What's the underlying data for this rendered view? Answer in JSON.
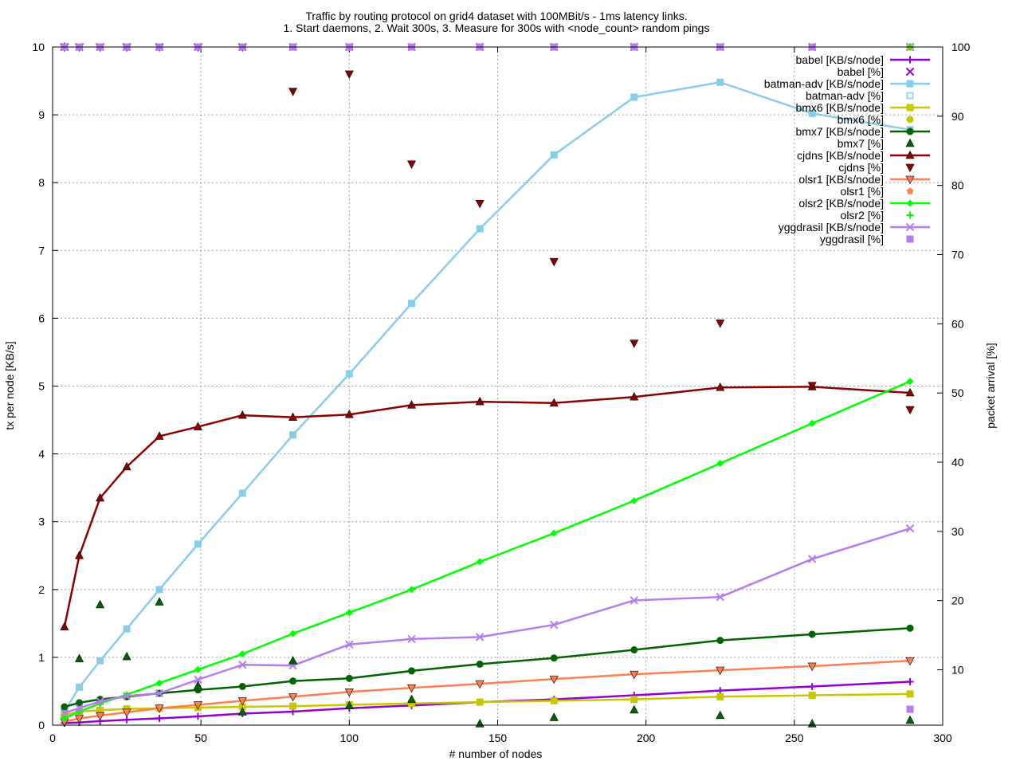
{
  "chart_data": {
    "type": "line",
    "title": "Traffic by routing protocol on grid4 dataset with 100MBit/s - 1ms latency links.",
    "subtitle": "1. Start daemons, 2. Wait 300s, 3. Measure for 300s with <node_count> random pings",
    "xlabel": "# number of nodes",
    "ylabel": "tx per node [KB/s]",
    "y2label": "packet arrival [%]",
    "xlim": [
      0,
      300
    ],
    "ylim": [
      0,
      10
    ],
    "y2lim": [
      2,
      100
    ],
    "x_ticks": [
      "0",
      "50",
      "100",
      "150",
      "200",
      "250",
      "300"
    ],
    "y_ticks": [
      "0",
      "1",
      "2",
      "3",
      "4",
      "5",
      "6",
      "7",
      "8",
      "9",
      "10"
    ],
    "y2_ticks": [
      "10",
      "20",
      "30",
      "40",
      "50",
      "60",
      "70",
      "80",
      "90",
      "100"
    ],
    "grid": true,
    "legend_position": "top-right",
    "x": [
      4,
      9,
      16,
      25,
      36,
      49,
      64,
      81,
      100,
      121,
      144,
      169,
      196,
      225,
      256,
      289
    ],
    "series": [
      {
        "name": "babel [KB/s/node]",
        "color": "#9400d3",
        "marker": "plus",
        "values": [
          0.03,
          0.04,
          0.06,
          0.08,
          0.1,
          0.13,
          0.17,
          0.2,
          0.25,
          0.29,
          0.34,
          0.38,
          0.44,
          0.51,
          0.57,
          0.64
        ]
      },
      {
        "name": "batman-adv [KB/s/node]",
        "color": "#87ceeb",
        "marker": "square",
        "values": [
          0.2,
          0.56,
          0.95,
          1.42,
          2.0,
          2.67,
          3.42,
          4.28,
          5.18,
          6.22,
          7.32,
          8.41,
          9.26,
          9.48,
          9.02,
          8.78
        ]
      },
      {
        "name": "bmx6 [KB/s/node]",
        "color": "#c8c800",
        "marker": "square",
        "values": [
          0.15,
          0.2,
          0.22,
          0.24,
          0.25,
          0.26,
          0.27,
          0.28,
          0.3,
          0.32,
          0.34,
          0.36,
          0.38,
          0.42,
          0.44,
          0.46
        ]
      },
      {
        "name": "bmx7 [KB/s/node]",
        "color": "#006400",
        "marker": "circle",
        "values": [
          0.27,
          0.33,
          0.38,
          0.42,
          0.47,
          0.52,
          0.57,
          0.65,
          0.69,
          0.8,
          0.9,
          0.99,
          1.11,
          1.25,
          1.34,
          1.43
        ]
      },
      {
        "name": "cjdns [KB/s/node]",
        "color": "#8b0000",
        "marker": "triangle-up",
        "values": [
          1.45,
          2.5,
          3.35,
          3.81,
          4.26,
          4.4,
          4.57,
          4.54,
          4.58,
          4.72,
          4.77,
          4.75,
          4.84,
          4.98,
          4.99,
          4.9
        ]
      },
      {
        "name": "olsr1 [KB/s/node]",
        "color": "#ff7f50",
        "marker": "triangle-down",
        "values": [
          0.05,
          0.1,
          0.14,
          0.19,
          0.25,
          0.3,
          0.36,
          0.42,
          0.49,
          0.55,
          0.61,
          0.68,
          0.75,
          0.81,
          0.87,
          0.95
        ]
      },
      {
        "name": "olsr2 [KB/s/node]",
        "color": "#00ff00",
        "marker": "diamond",
        "values": [
          0.1,
          0.2,
          0.32,
          0.45,
          0.62,
          0.82,
          1.05,
          1.35,
          1.66,
          2.0,
          2.41,
          2.83,
          3.31,
          3.86,
          4.45,
          5.07
        ]
      },
      {
        "name": "yggdrasil [KB/s/node]",
        "color": "#b77cf0",
        "marker": "x",
        "values": [
          0.18,
          0.25,
          0.35,
          0.43,
          0.47,
          0.67,
          0.89,
          0.88,
          1.19,
          1.27,
          1.3,
          1.48,
          1.84,
          1.89,
          2.45,
          2.9
        ]
      }
    ],
    "arrival_series": [
      {
        "name": "babel [%]",
        "color": "#9400d3",
        "marker": "x",
        "values": [
          100,
          100,
          100,
          100,
          100,
          100,
          100,
          100,
          100,
          100,
          100,
          100,
          100,
          100,
          100,
          100
        ]
      },
      {
        "name": "batman-adv [%]",
        "color": "#87ceeb",
        "marker": "square-open",
        "values": [
          100,
          100,
          100,
          100,
          100,
          100,
          100,
          100,
          100,
          100,
          100,
          100,
          100,
          100,
          100,
          100
        ]
      },
      {
        "name": "bmx6 [%]",
        "color": "#c8c800",
        "marker": "circle",
        "values": [
          100,
          100,
          100,
          100,
          100,
          100,
          100,
          100,
          100,
          100,
          100,
          100,
          100,
          100,
          100,
          100
        ]
      },
      {
        "name": "bmx7 [%]",
        "color": "#006400",
        "marker": "triangle-up",
        "values": [
          100,
          11.6,
          19.4,
          11.9,
          19.8,
          7.7,
          3.9,
          11.3,
          4.8,
          5.7,
          2.2,
          3.1,
          4.2,
          3.4,
          2.2,
          2.7
        ]
      },
      {
        "name": "cjdns [%]",
        "color": "#8b0000",
        "marker": "triangle-down",
        "values": [
          100,
          100,
          100,
          100,
          100,
          100,
          100,
          93.6,
          96.1,
          83.1,
          77.4,
          69.0,
          57.2,
          60.1,
          51.1,
          47.6
        ]
      },
      {
        "name": "olsr1 [%]",
        "color": "#ff7f50",
        "marker": "pentagon",
        "values": [
          100,
          100,
          100,
          100,
          100,
          100,
          100,
          100,
          100,
          100,
          100,
          100,
          100,
          100,
          100,
          100
        ]
      },
      {
        "name": "olsr2 [%]",
        "color": "#00ff00",
        "marker": "plus",
        "values": [
          100,
          100,
          100,
          100,
          100,
          100,
          100,
          100,
          100,
          100,
          100,
          100,
          100,
          100,
          100,
          100
        ]
      },
      {
        "name": "yggdrasil [%]",
        "color": "#b77cf0",
        "marker": "square",
        "values": [
          100,
          100,
          100,
          100,
          100,
          100,
          100,
          100,
          100,
          100,
          100,
          100,
          100,
          100,
          100,
          4.3
        ]
      }
    ]
  }
}
